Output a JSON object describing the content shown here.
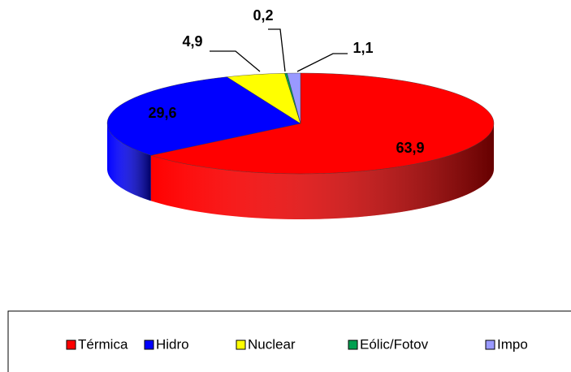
{
  "chart_data": {
    "type": "pie3d",
    "categories": [
      "Térmica",
      "Hidro",
      "Nuclear",
      "Eólic/Fotov",
      "Impo"
    ],
    "values": [
      63.9,
      29.6,
      4.9,
      0.2,
      1.1
    ],
    "value_labels": [
      "63,9",
      "29,6",
      "4,9",
      "0,2",
      "1,1"
    ],
    "colors": [
      "#ff0000",
      "#0000ff",
      "#ffff00",
      "#00a050",
      "#9999ff"
    ],
    "legend": "bottom"
  }
}
